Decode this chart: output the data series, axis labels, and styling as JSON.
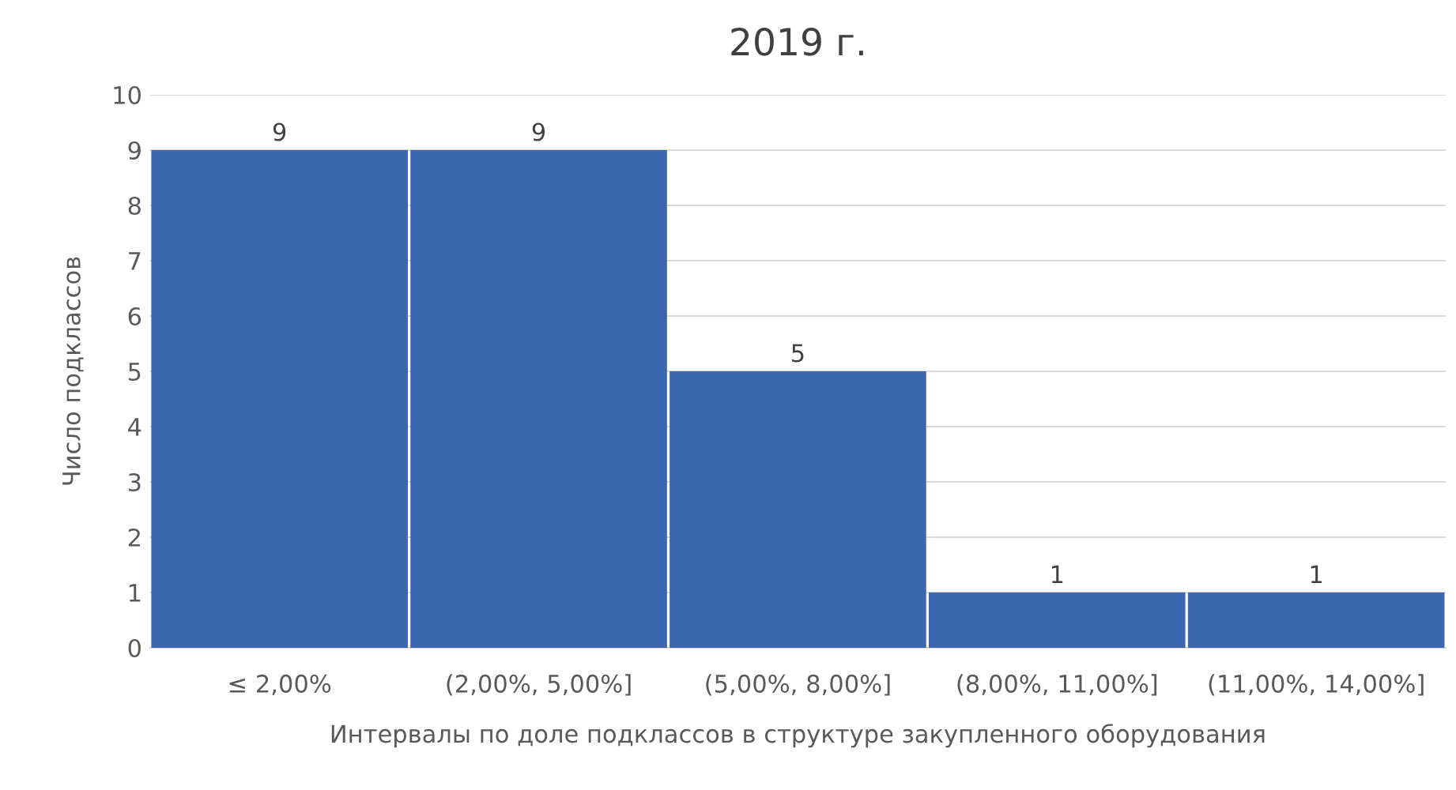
{
  "chart_data": {
    "type": "bar",
    "title": "2019 г.",
    "xlabel": "Интервалы по доле подклассов в структуре закупленного оборудования",
    "ylabel": "Число подклассов",
    "categories": [
      "≤ 2,00%",
      "(2,00%, 5,00%]",
      "(5,00%, 8,00%]",
      "(8,00%, 11,00%]",
      "(11,00%, 14,00%]"
    ],
    "values": [
      9,
      9,
      5,
      1,
      1
    ],
    "color": "#3a67b0",
    "ylim": [
      0,
      10
    ],
    "yticks": [
      0,
      1,
      2,
      3,
      4,
      5,
      6,
      7,
      8,
      9,
      10
    ],
    "grid": "y",
    "data_labels": true
  }
}
